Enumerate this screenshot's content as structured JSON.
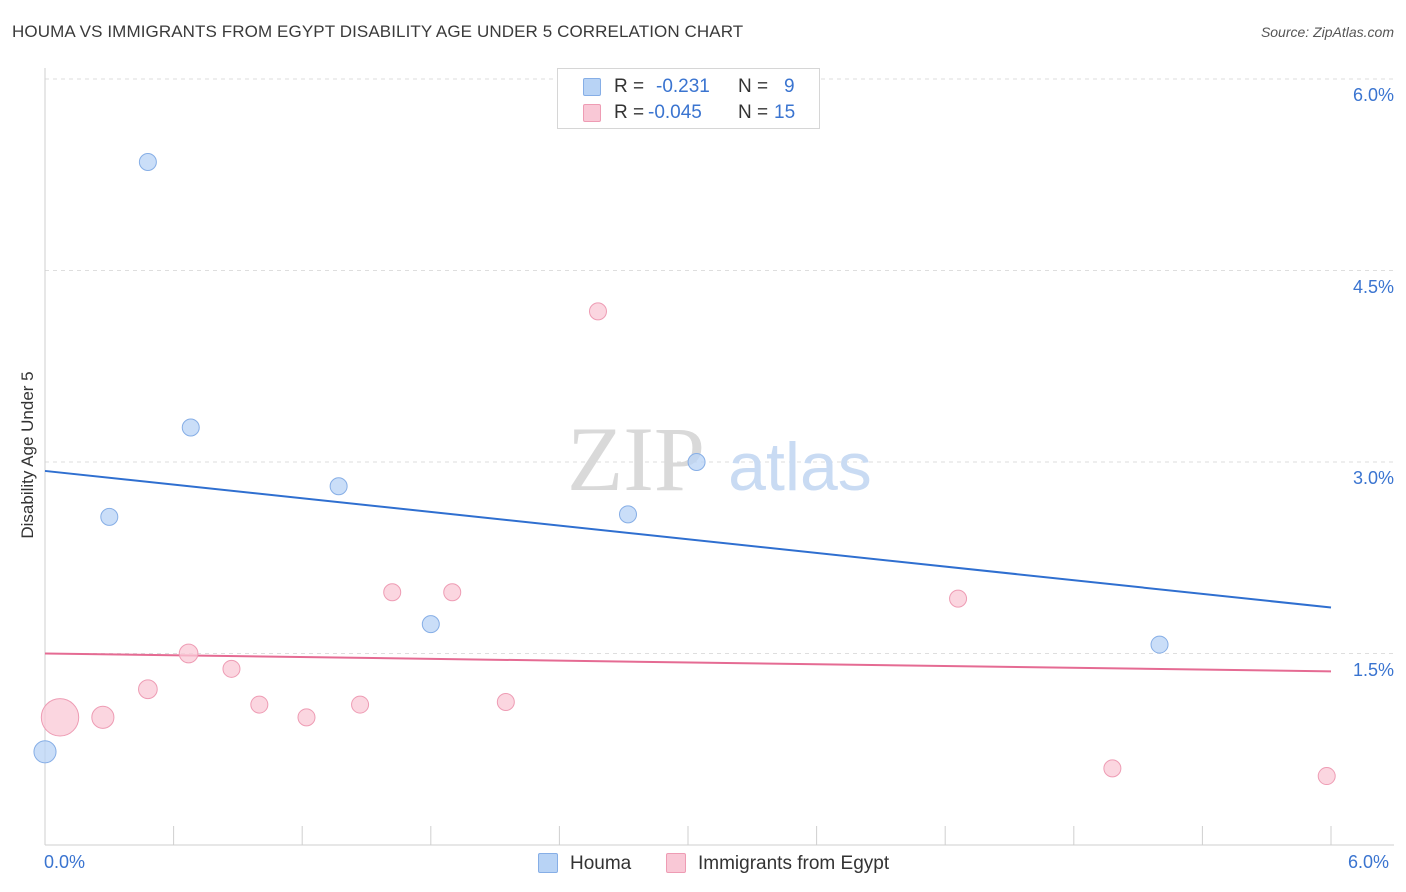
{
  "title": "HOUMA VS IMMIGRANTS FROM EGYPT DISABILITY AGE UNDER 5 CORRELATION CHART",
  "source": "Source: ZipAtlas.com",
  "watermark": {
    "zip": "ZIP",
    "atlas": "atlas"
  },
  "legend": {
    "houma": {
      "r_label": "R =",
      "r_value": "-0.231",
      "n_label": "N =",
      "n_value": "9"
    },
    "egypt": {
      "r_label": "R =",
      "r_value": "-0.045",
      "n_label": "N =",
      "n_value": "15"
    }
  },
  "colors": {
    "houma_fill": "#b8d3f5",
    "houma_stroke": "#86aee6",
    "houma_line": "#2f6fd0",
    "egypt_fill": "#f9c8d6",
    "egypt_stroke": "#ee9cb4",
    "egypt_line": "#e56b93",
    "grid": "#dedede",
    "axis_text": "#3a74d0"
  },
  "chart_data": {
    "type": "scatter",
    "title": "HOUMA VS IMMIGRANTS FROM EGYPT DISABILITY AGE UNDER 5 CORRELATION CHART",
    "xlabel": "",
    "ylabel": "Disability Age Under 5",
    "xlim": [
      0.0,
      6.0
    ],
    "ylim": [
      0.0,
      6.3
    ],
    "x_tick_labels": [
      "0.0%",
      "6.0%"
    ],
    "y_ticks": [
      1.5,
      3.0,
      4.5,
      6.0
    ],
    "y_tick_labels": [
      "1.5%",
      "3.0%",
      "4.5%",
      "6.0%"
    ],
    "grid": true,
    "legend_position": "top-center",
    "series": [
      {
        "name": "Houma",
        "points": [
          {
            "x": 0.0,
            "y": 0.73,
            "size": 1.3
          },
          {
            "x": 0.3,
            "y": 2.57,
            "size": 1
          },
          {
            "x": 0.48,
            "y": 5.35,
            "size": 1
          },
          {
            "x": 0.68,
            "y": 3.27,
            "size": 1
          },
          {
            "x": 1.37,
            "y": 2.81,
            "size": 1
          },
          {
            "x": 1.8,
            "y": 1.73,
            "size": 1
          },
          {
            "x": 2.72,
            "y": 2.59,
            "size": 1
          },
          {
            "x": 3.04,
            "y": 3.0,
            "size": 1
          },
          {
            "x": 5.2,
            "y": 1.57,
            "size": 1
          }
        ],
        "trend": {
          "x": [
            0.0,
            6.0
          ],
          "y": [
            2.93,
            1.86
          ]
        }
      },
      {
        "name": "Immigrants from Egypt",
        "points": [
          {
            "x": 0.07,
            "y": 1.0,
            "size": 2.2
          },
          {
            "x": 0.27,
            "y": 1.0,
            "size": 1.3
          },
          {
            "x": 0.48,
            "y": 1.22,
            "size": 1.1
          },
          {
            "x": 0.67,
            "y": 1.5,
            "size": 1.1
          },
          {
            "x": 0.87,
            "y": 1.38,
            "size": 1
          },
          {
            "x": 1.0,
            "y": 1.1,
            "size": 1
          },
          {
            "x": 1.22,
            "y": 1.0,
            "size": 1
          },
          {
            "x": 1.47,
            "y": 1.1,
            "size": 1
          },
          {
            "x": 1.62,
            "y": 1.98,
            "size": 1
          },
          {
            "x": 1.9,
            "y": 1.98,
            "size": 1
          },
          {
            "x": 2.15,
            "y": 1.12,
            "size": 1
          },
          {
            "x": 2.58,
            "y": 4.18,
            "size": 1
          },
          {
            "x": 4.26,
            "y": 1.93,
            "size": 1
          },
          {
            "x": 4.98,
            "y": 0.6,
            "size": 1
          },
          {
            "x": 5.98,
            "y": 0.54,
            "size": 1
          }
        ],
        "trend": {
          "x": [
            0.0,
            6.0
          ],
          "y": [
            1.5,
            1.36
          ]
        }
      }
    ]
  },
  "bottom_legend": {
    "houma": "Houma",
    "egypt": "Immigrants from Egypt"
  }
}
